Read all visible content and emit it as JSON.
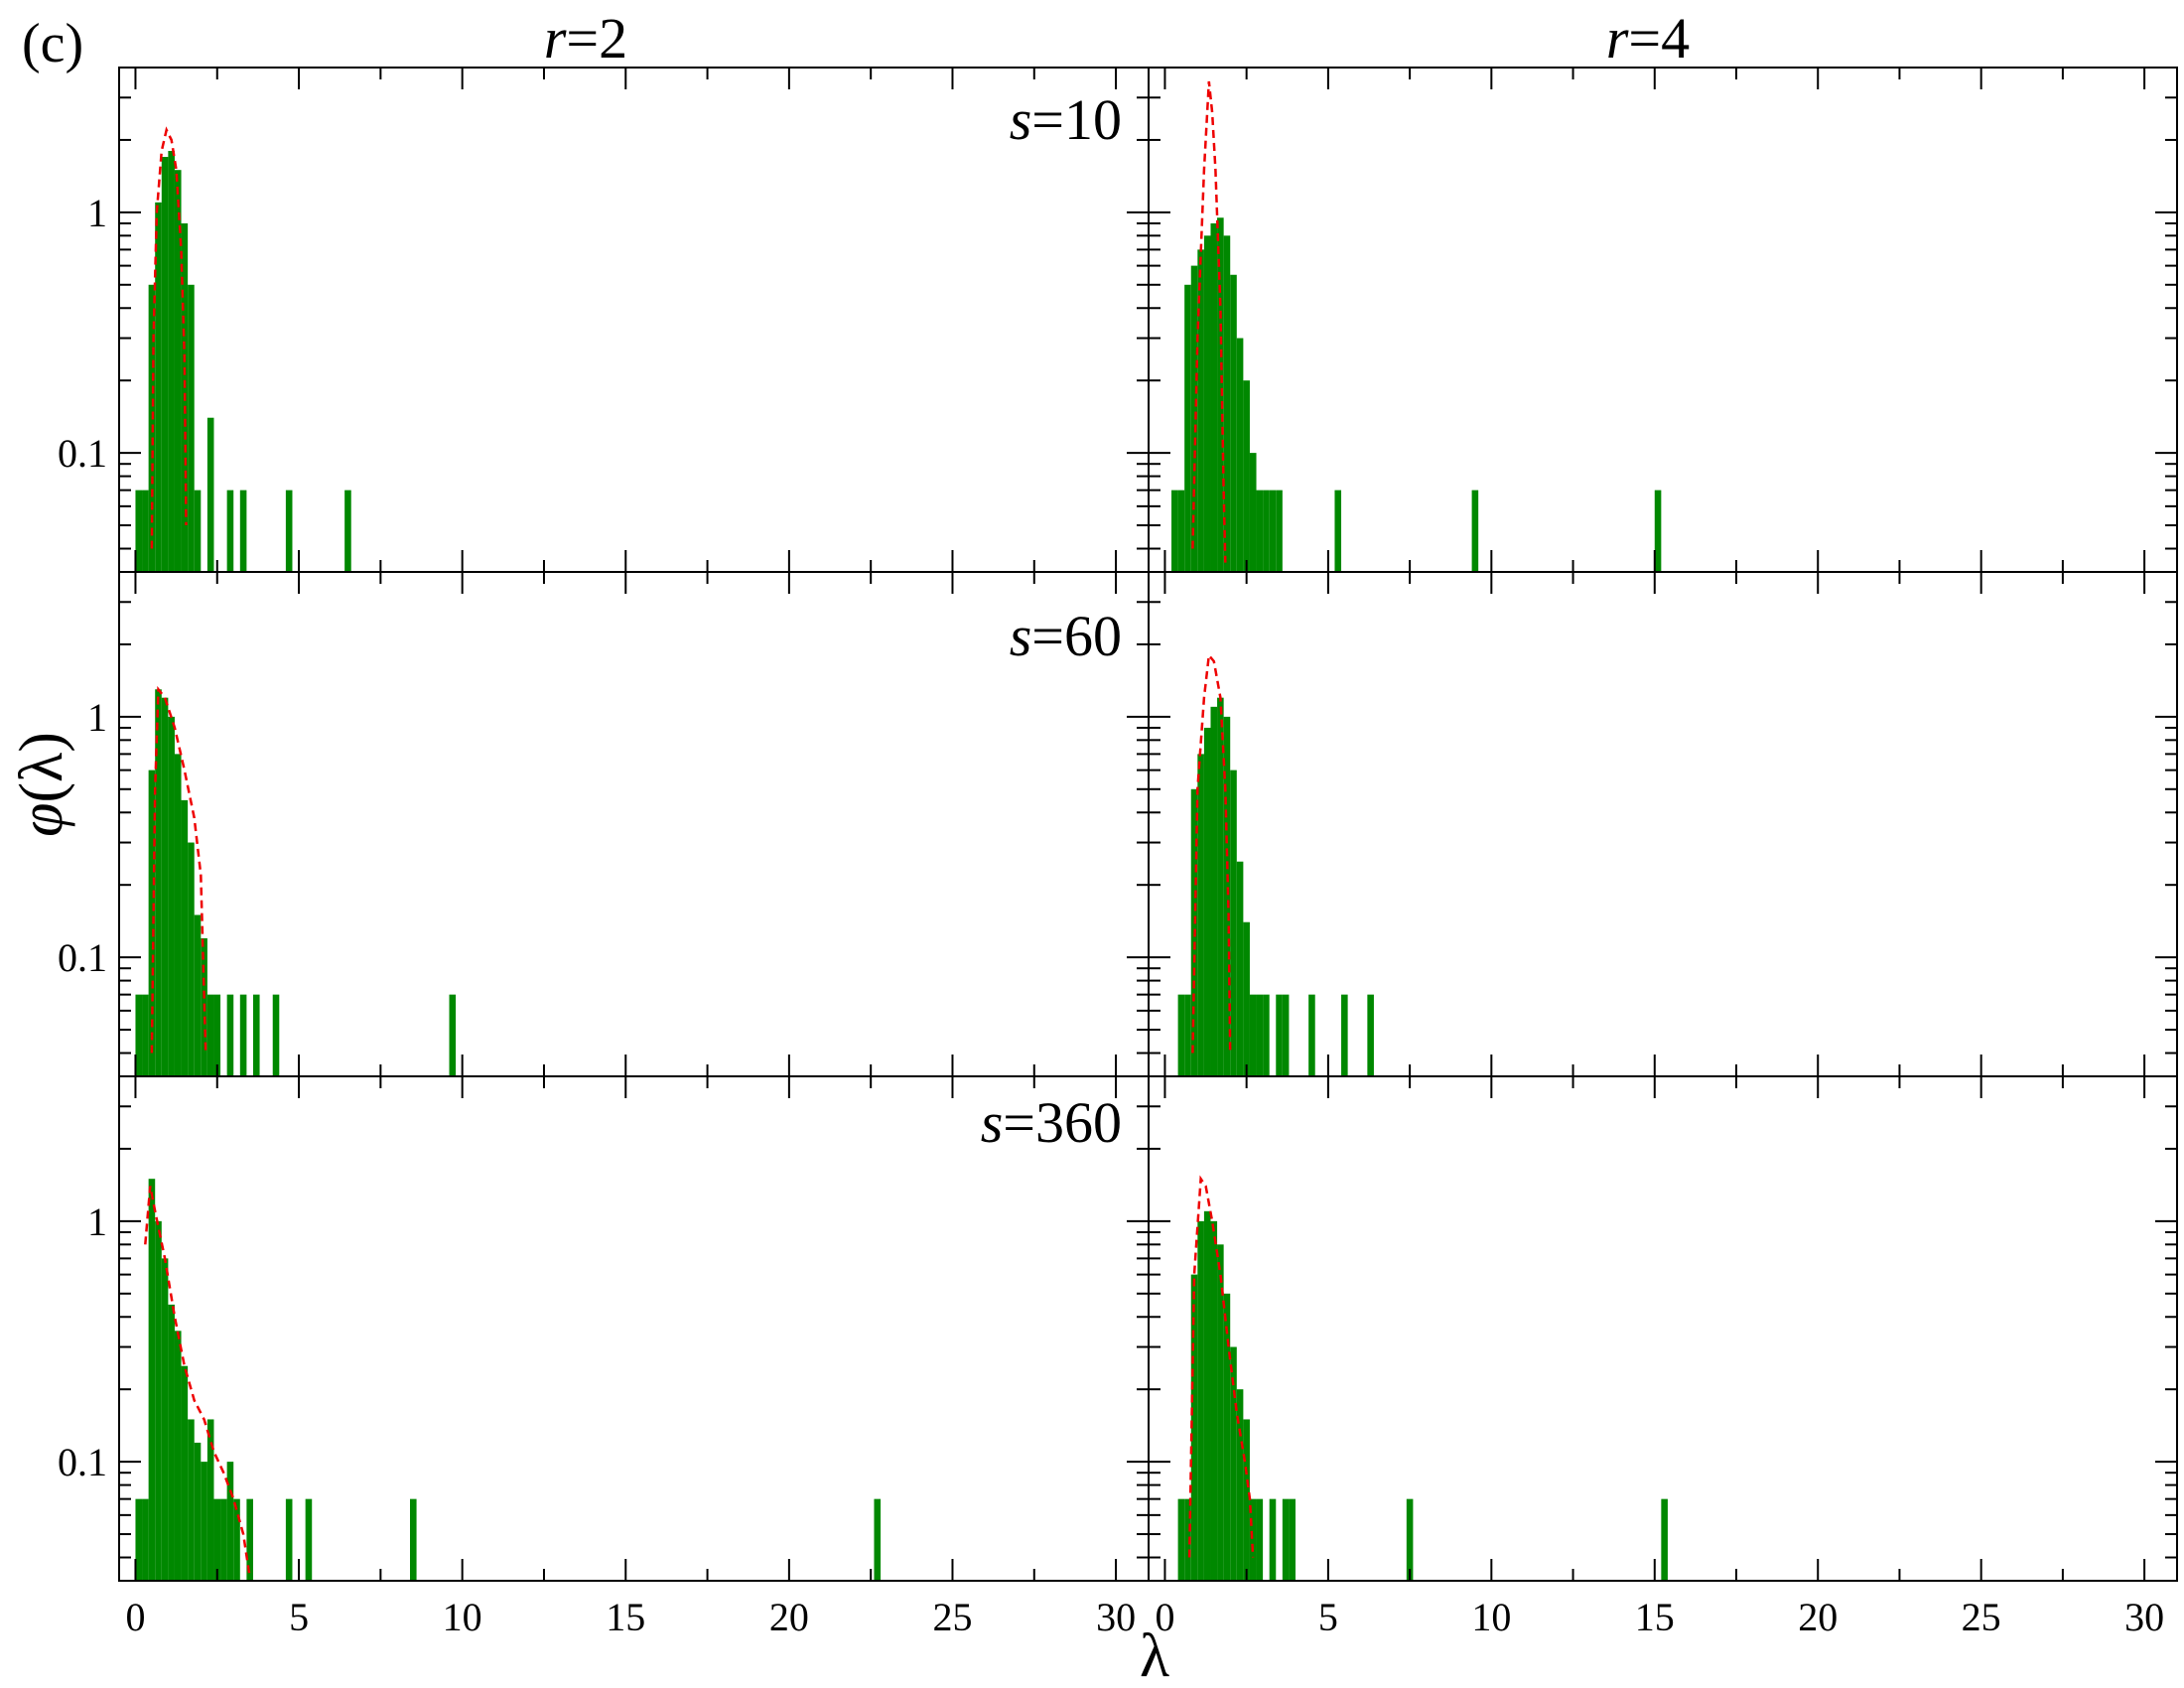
{
  "figure_label": "(c)",
  "column_titles": [
    {
      "var": "r",
      "rest": "=2"
    },
    {
      "var": "r",
      "rest": "=4"
    }
  ],
  "row_labels": [
    {
      "var": "s",
      "rest": "=10"
    },
    {
      "var": "s",
      "rest": "=60"
    },
    {
      "var": "s",
      "rest": "=360"
    }
  ],
  "xlabel": "λ",
  "ylabel": {
    "var": "φ",
    "rest": "(λ)"
  },
  "colors": {
    "histogram": "#008800",
    "theory_curve": "#ee0000",
    "axes": "#000000"
  },
  "chart_data": {
    "type": "bar",
    "layout": "3 rows x 2 columns small multiples, shared axes",
    "xlim": [
      -0.5,
      31
    ],
    "ylim": [
      0.032,
      4.0
    ],
    "yscale": "log",
    "x_ticks": [
      0,
      5,
      10,
      15,
      20,
      25,
      30
    ],
    "y_ticks": [
      0.1,
      1
    ],
    "y_tick_labels": [
      "0.1",
      "1"
    ],
    "grid": false,
    "legend": "none",
    "panels": [
      {
        "row": 0,
        "col": 0,
        "label_index": 0,
        "histogram": {
          "name": "histogram",
          "bin_width": 0.2,
          "bins": [
            [
              0.0,
              0.07
            ],
            [
              0.2,
              0.07
            ],
            [
              0.4,
              0.5
            ],
            [
              0.6,
              1.1
            ],
            [
              0.8,
              1.7
            ],
            [
              1.0,
              1.8
            ],
            [
              1.2,
              1.5
            ],
            [
              1.4,
              0.9
            ],
            [
              1.6,
              0.5
            ],
            [
              1.8,
              0.07
            ],
            [
              2.2,
              0.14
            ],
            [
              2.8,
              0.07
            ],
            [
              3.2,
              0.07
            ],
            [
              4.6,
              0.07
            ],
            [
              6.4,
              0.07
            ]
          ]
        },
        "curve": {
          "name": "theory",
          "points": [
            [
              0.5,
              0.04
            ],
            [
              0.55,
              0.3
            ],
            [
              0.65,
              1.0
            ],
            [
              0.8,
              1.8
            ],
            [
              0.95,
              2.2
            ],
            [
              1.1,
              2.0
            ],
            [
              1.25,
              1.5
            ],
            [
              1.4,
              0.7
            ],
            [
              1.5,
              0.25
            ],
            [
              1.55,
              0.05
            ]
          ]
        }
      },
      {
        "row": 0,
        "col": 1,
        "label_index": null,
        "histogram": {
          "name": "histogram",
          "bin_width": 0.2,
          "bins": [
            [
              0.2,
              0.07
            ],
            [
              0.4,
              0.07
            ],
            [
              0.6,
              0.5
            ],
            [
              0.8,
              0.6
            ],
            [
              1.0,
              0.7
            ],
            [
              1.2,
              0.8
            ],
            [
              1.4,
              0.9
            ],
            [
              1.6,
              0.95
            ],
            [
              1.8,
              0.8
            ],
            [
              2.0,
              0.55
            ],
            [
              2.2,
              0.3
            ],
            [
              2.4,
              0.2
            ],
            [
              2.6,
              0.1
            ],
            [
              2.8,
              0.07
            ],
            [
              3.0,
              0.07
            ],
            [
              3.2,
              0.07
            ],
            [
              3.4,
              0.07
            ],
            [
              5.2,
              0.07
            ],
            [
              9.4,
              0.07
            ],
            [
              15.0,
              0.07
            ]
          ]
        },
        "curve": {
          "name": "theory",
          "points": [
            [
              0.85,
              0.04
            ],
            [
              1.0,
              0.3
            ],
            [
              1.2,
              1.5
            ],
            [
              1.35,
              3.5
            ],
            [
              1.45,
              2.6
            ],
            [
              1.55,
              1.5
            ],
            [
              1.7,
              0.4
            ],
            [
              1.8,
              0.07
            ],
            [
              1.85,
              0.035
            ]
          ]
        }
      },
      {
        "row": 1,
        "col": 0,
        "label_index": 1,
        "histogram": {
          "name": "histogram",
          "bin_width": 0.2,
          "bins": [
            [
              0.0,
              0.07
            ],
            [
              0.2,
              0.07
            ],
            [
              0.4,
              0.6
            ],
            [
              0.6,
              1.3
            ],
            [
              0.8,
              1.2
            ],
            [
              1.0,
              1.0
            ],
            [
              1.2,
              0.7
            ],
            [
              1.4,
              0.45
            ],
            [
              1.6,
              0.3
            ],
            [
              1.8,
              0.15
            ],
            [
              2.0,
              0.12
            ],
            [
              2.2,
              0.07
            ],
            [
              2.4,
              0.07
            ],
            [
              2.8,
              0.07
            ],
            [
              3.2,
              0.07
            ],
            [
              3.6,
              0.07
            ],
            [
              4.2,
              0.07
            ],
            [
              9.6,
              0.07
            ]
          ]
        },
        "curve": {
          "name": "theory",
          "points": [
            [
              0.5,
              0.04
            ],
            [
              0.6,
              0.5
            ],
            [
              0.7,
              1.3
            ],
            [
              0.9,
              1.2
            ],
            [
              1.2,
              0.9
            ],
            [
              1.5,
              0.6
            ],
            [
              1.8,
              0.38
            ],
            [
              2.0,
              0.22
            ],
            [
              2.15,
              0.04
            ]
          ]
        }
      },
      {
        "row": 1,
        "col": 1,
        "label_index": null,
        "histogram": {
          "name": "histogram",
          "bin_width": 0.2,
          "bins": [
            [
              0.4,
              0.07
            ],
            [
              0.6,
              0.07
            ],
            [
              0.8,
              0.5
            ],
            [
              1.0,
              0.7
            ],
            [
              1.2,
              0.9
            ],
            [
              1.4,
              1.1
            ],
            [
              1.6,
              1.2
            ],
            [
              1.8,
              1.0
            ],
            [
              2.0,
              0.6
            ],
            [
              2.2,
              0.25
            ],
            [
              2.4,
              0.14
            ],
            [
              2.6,
              0.07
            ],
            [
              2.8,
              0.07
            ],
            [
              3.0,
              0.07
            ],
            [
              3.4,
              0.07
            ],
            [
              3.6,
              0.07
            ],
            [
              4.4,
              0.07
            ],
            [
              5.4,
              0.07
            ],
            [
              6.2,
              0.07
            ]
          ]
        },
        "curve": {
          "name": "theory",
          "points": [
            [
              0.85,
              0.04
            ],
            [
              1.0,
              0.5
            ],
            [
              1.2,
              1.2
            ],
            [
              1.35,
              1.8
            ],
            [
              1.5,
              1.7
            ],
            [
              1.7,
              1.2
            ],
            [
              1.85,
              0.5
            ],
            [
              1.95,
              0.15
            ],
            [
              2.0,
              0.04
            ]
          ]
        }
      },
      {
        "row": 2,
        "col": 0,
        "label_index": 2,
        "histogram": {
          "name": "histogram",
          "bin_width": 0.2,
          "bins": [
            [
              0.0,
              0.07
            ],
            [
              0.2,
              0.07
            ],
            [
              0.4,
              1.5
            ],
            [
              0.6,
              1.0
            ],
            [
              0.8,
              0.7
            ],
            [
              1.0,
              0.45
            ],
            [
              1.2,
              0.35
            ],
            [
              1.4,
              0.25
            ],
            [
              1.6,
              0.15
            ],
            [
              1.8,
              0.12
            ],
            [
              2.0,
              0.1
            ],
            [
              2.2,
              0.15
            ],
            [
              2.4,
              0.07
            ],
            [
              2.6,
              0.07
            ],
            [
              2.8,
              0.1
            ],
            [
              3.0,
              0.07
            ],
            [
              3.4,
              0.07
            ],
            [
              4.6,
              0.07
            ],
            [
              5.2,
              0.07
            ],
            [
              8.4,
              0.07
            ],
            [
              22.6,
              0.07
            ]
          ]
        },
        "curve": {
          "name": "theory",
          "points": [
            [
              0.3,
              0.8
            ],
            [
              0.45,
              1.4
            ],
            [
              0.6,
              1.1
            ],
            [
              0.9,
              0.7
            ],
            [
              1.2,
              0.4
            ],
            [
              1.5,
              0.25
            ],
            [
              1.8,
              0.18
            ],
            [
              2.1,
              0.15
            ],
            [
              2.4,
              0.11
            ],
            [
              2.7,
              0.09
            ],
            [
              3.0,
              0.07
            ],
            [
              3.3,
              0.05
            ],
            [
              3.5,
              0.033
            ]
          ]
        }
      },
      {
        "row": 2,
        "col": 1,
        "label_index": null,
        "histogram": {
          "name": "histogram",
          "bin_width": 0.2,
          "bins": [
            [
              0.4,
              0.07
            ],
            [
              0.6,
              0.07
            ],
            [
              0.8,
              0.6
            ],
            [
              1.0,
              1.0
            ],
            [
              1.2,
              1.1
            ],
            [
              1.4,
              1.0
            ],
            [
              1.6,
              0.8
            ],
            [
              1.8,
              0.5
            ],
            [
              2.0,
              0.3
            ],
            [
              2.2,
              0.2
            ],
            [
              2.4,
              0.15
            ],
            [
              2.6,
              0.07
            ],
            [
              2.8,
              0.07
            ],
            [
              3.2,
              0.07
            ],
            [
              3.6,
              0.07
            ],
            [
              3.8,
              0.07
            ],
            [
              7.4,
              0.07
            ],
            [
              15.2,
              0.07
            ]
          ]
        },
        "curve": {
          "name": "theory",
          "points": [
            [
              0.75,
              0.04
            ],
            [
              0.9,
              0.6
            ],
            [
              1.1,
              1.5
            ],
            [
              1.25,
              1.4
            ],
            [
              1.45,
              1.0
            ],
            [
              1.7,
              0.6
            ],
            [
              1.95,
              0.3
            ],
            [
              2.2,
              0.16
            ],
            [
              2.45,
              0.1
            ],
            [
              2.6,
              0.07
            ],
            [
              2.7,
              0.04
            ]
          ]
        }
      }
    ]
  }
}
